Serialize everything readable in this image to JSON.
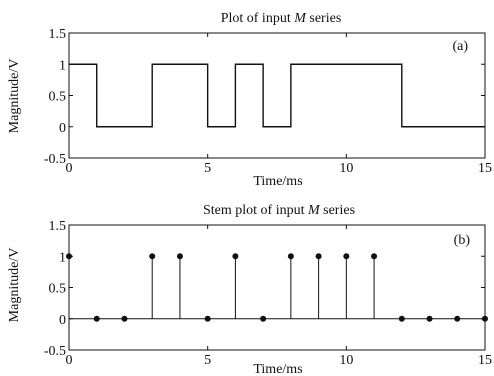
{
  "chart_data": [
    {
      "type": "line",
      "title": "Plot of input M series",
      "title_prefix": "Plot of input ",
      "title_italic": "M",
      "title_suffix": " series",
      "annotation": "(a)",
      "xlabel": "Time/ms",
      "ylabel": "Magnitude/V",
      "xlim": [
        0,
        15
      ],
      "ylim": [
        -0.5,
        1.5
      ],
      "xticks": [
        "0",
        "5",
        "10",
        "15"
      ],
      "yticks": [
        "1.5",
        "1",
        "0.5",
        "0",
        "-0.5"
      ],
      "grid": false,
      "series": [
        {
          "step": true,
          "x": [
            0,
            1,
            3,
            5,
            6,
            7,
            8,
            12,
            15
          ],
          "values": [
            1,
            0,
            1,
            0,
            1,
            0,
            1,
            0,
            0
          ]
        }
      ]
    },
    {
      "type": "scatter",
      "style": "stem",
      "title": "Stem plot of input M series",
      "title_prefix": "Stem plot of input ",
      "title_italic": "M",
      "title_suffix": " series",
      "annotation": "(b)",
      "xlabel": "Time/ms",
      "ylabel": "Magnitude/V",
      "xlim": [
        0,
        15
      ],
      "ylim": [
        -0.5,
        1.5
      ],
      "xticks": [
        "0",
        "5",
        "10",
        "15"
      ],
      "yticks": [
        "1.5",
        "1",
        "0.5",
        "0",
        "-0.5"
      ],
      "grid": false,
      "series": [
        {
          "x": [
            0,
            1,
            2,
            3,
            4,
            5,
            6,
            7,
            8,
            9,
            10,
            11,
            12,
            13,
            14,
            15
          ],
          "values": [
            1,
            0,
            0,
            1,
            1,
            0,
            1,
            0,
            1,
            1,
            1,
            1,
            0,
            0,
            0,
            0
          ]
        }
      ]
    }
  ]
}
